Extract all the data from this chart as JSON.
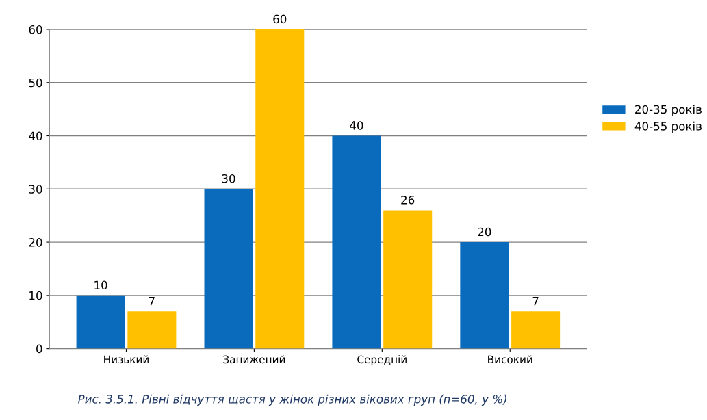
{
  "chart_data": {
    "type": "bar",
    "categories": [
      "Низький",
      "Занижений",
      "Середній",
      "Високий"
    ],
    "series": [
      {
        "name": "20-35 років",
        "color": "#0a6bbd",
        "values": [
          10,
          30,
          40,
          20
        ]
      },
      {
        "name": "40-55 років",
        "color": "#ffc000",
        "values": [
          7,
          60,
          26,
          7
        ]
      }
    ],
    "ylim": [
      0,
      60
    ],
    "yticks": [
      0,
      10,
      20,
      30,
      40,
      50,
      60
    ],
    "grid": "y",
    "legend": "right",
    "data_labels": true,
    "annotations": [
      "Рис. 3.5.1. Рівні відчуття щастя у жінок різних вікових груп (n=60, у %)"
    ]
  }
}
